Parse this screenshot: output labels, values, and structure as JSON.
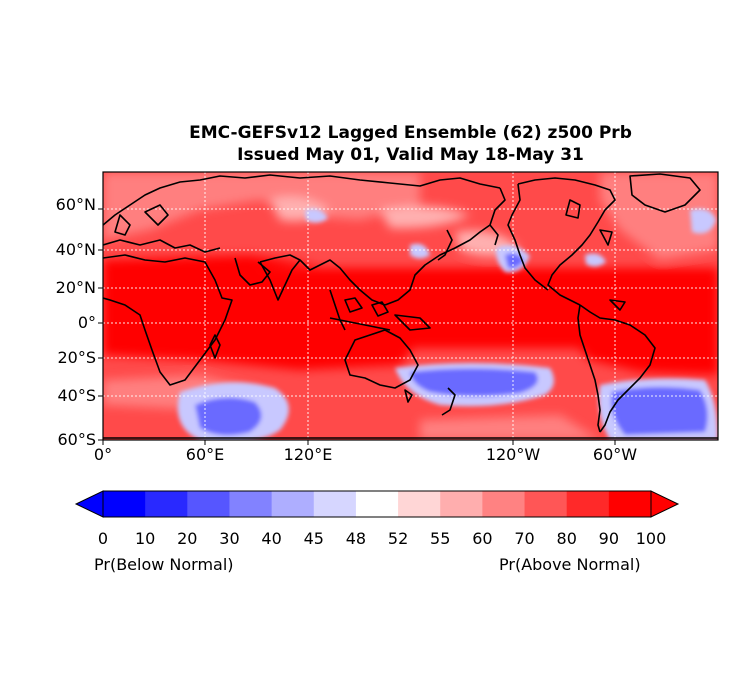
{
  "title_line1": "EMC-GEFSv12 Lagged Ensemble (62) z500 Prb",
  "title_line2": "Issued May 01, Valid May 18-May 31",
  "lat_labels": [
    "60°N",
    "40°N",
    "20°N",
    "0°",
    "20°S",
    "40°S",
    "60°S"
  ],
  "lon_labels": [
    "0°",
    "60°E",
    "120°E",
    "120°W",
    "60°W"
  ],
  "colorbar": {
    "ticks": [
      "0",
      "10",
      "20",
      "30",
      "40",
      "45",
      "48",
      "52",
      "55",
      "60",
      "70",
      "80",
      "90",
      "100"
    ],
    "colors": [
      "#0000ff",
      "#2929ff",
      "#5656ff",
      "#8282ff",
      "#aeaeff",
      "#d6d6ff",
      "#ffffff",
      "#ffd6d6",
      "#ffaeae",
      "#ff8282",
      "#ff5656",
      "#ff2929",
      "#ff0000"
    ],
    "left_label": "Pr(Below Normal)",
    "right_label": "Pr(Above Normal)"
  },
  "map_colors": {
    "strong_above": "#ff0000",
    "above": "#ff4a4a",
    "moderate_above": "#ff7f7f",
    "weak_above": "#ffb0b0",
    "below": "#6a6aff",
    "weak_below": "#c8c8ff"
  }
}
